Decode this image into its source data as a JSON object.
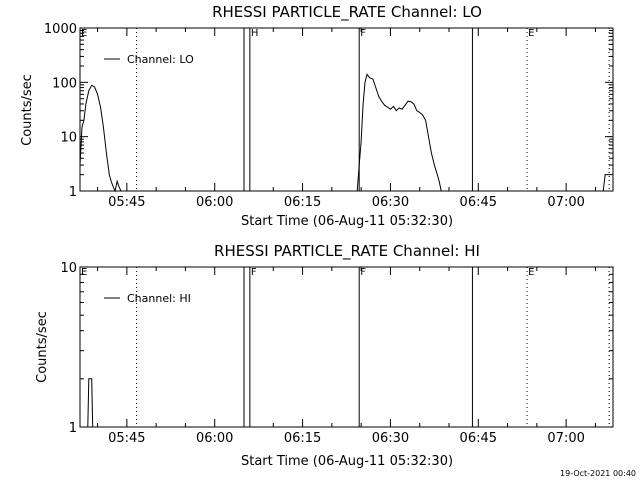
{
  "footer_timestamp": "19-Oct-2021 00:40",
  "chart_data": [
    {
      "type": "line",
      "title": "RHESSI PARTICLE_RATE Channel: LO",
      "xlabel": "Start Time (06-Aug-11 05:32:30)",
      "ylabel": "Counts/sec",
      "y_scale": "log",
      "ylim": [
        1,
        1000
      ],
      "xlim": [
        "05:37:00",
        "07:08:00"
      ],
      "x_ticks": [
        "05:45",
        "06:00",
        "06:15",
        "06:30",
        "06:45",
        "07:00"
      ],
      "y_ticks": [
        "1",
        "10",
        "100",
        "1000"
      ],
      "legend": {
        "label": "Channel: LO",
        "position": "top-left"
      },
      "markers": [
        {
          "label": "E",
          "time": "05:37:00",
          "style": "solid"
        },
        {
          "label": "",
          "time": "05:46:40",
          "style": "dotted"
        },
        {
          "label": "",
          "time": "06:05:00",
          "style": "solid"
        },
        {
          "label": "H",
          "time": "06:06:00",
          "style": "solid"
        },
        {
          "label": "F",
          "time": "06:24:40",
          "style": "solid"
        },
        {
          "label": "",
          "time": "06:44:00",
          "style": "solid"
        },
        {
          "label": "E",
          "time": "06:53:20",
          "style": "dotted"
        },
        {
          "label": "",
          "time": "07:07:20",
          "style": "dotted"
        }
      ],
      "series": [
        {
          "name": "Channel: LO",
          "x": [
            "05:37:00",
            "05:37:20",
            "05:37:40",
            "05:38:00",
            "05:38:30",
            "05:39:00",
            "05:39:30",
            "05:40:00",
            "05:40:30",
            "05:41:00",
            "05:41:30",
            "05:42:00",
            "05:42:20",
            "05:42:40",
            "05:43:00",
            "05:43:20",
            "05:43:40",
            "05:44:00",
            "05:44:20"
          ],
          "y": [
            3,
            15,
            20,
            40,
            70,
            88,
            82,
            60,
            35,
            15,
            5,
            2,
            1.5,
            1.2,
            1,
            1.5,
            1.2,
            1,
            1
          ]
        },
        {
          "name": "",
          "x": [
            "06:24:20",
            "06:24:40",
            "06:25:00",
            "06:25:20",
            "06:25:40",
            "06:26:00",
            "06:26:30",
            "06:27:00",
            "06:27:30",
            "06:28:00",
            "06:28:30",
            "06:29:00",
            "06:29:30",
            "06:30:00",
            "06:30:30",
            "06:31:00",
            "06:31:30",
            "06:32:00",
            "06:32:30",
            "06:33:00",
            "06:33:30",
            "06:34:00",
            "06:34:30",
            "06:35:00",
            "06:35:30",
            "06:36:00",
            "06:36:30",
            "06:37:00",
            "06:37:30",
            "06:38:00",
            "06:38:20",
            "06:38:40"
          ],
          "y": [
            1,
            3,
            8,
            40,
            100,
            140,
            120,
            115,
            80,
            55,
            45,
            38,
            35,
            32,
            36,
            30,
            34,
            32,
            38,
            45,
            44,
            40,
            30,
            28,
            25,
            20,
            10,
            5,
            3,
            2,
            1.5,
            1
          ]
        },
        {
          "name": "",
          "x": [
            "07:06:20",
            "07:06:40",
            "07:07:00",
            "07:07:20"
          ],
          "y": [
            1,
            2,
            2,
            2
          ]
        }
      ]
    },
    {
      "type": "line",
      "title": "RHESSI PARTICLE_RATE Channel: HI",
      "xlabel": "Start Time (06-Aug-11 05:32:30)",
      "ylabel": "Counts/sec",
      "y_scale": "log",
      "ylim": [
        1,
        10
      ],
      "xlim": [
        "05:37:00",
        "07:08:00"
      ],
      "x_ticks": [
        "05:45",
        "06:00",
        "06:15",
        "06:30",
        "06:45",
        "07:00"
      ],
      "y_ticks": [
        "1",
        "10"
      ],
      "legend": {
        "label": "Channel: HI",
        "position": "top-left"
      },
      "markers": [
        {
          "label": "E",
          "time": "05:37:00",
          "style": "solid"
        },
        {
          "label": "",
          "time": "05:46:40",
          "style": "dotted"
        },
        {
          "label": "",
          "time": "06:05:00",
          "style": "solid"
        },
        {
          "label": "F",
          "time": "06:06:00",
          "style": "solid"
        },
        {
          "label": "F",
          "time": "06:24:40",
          "style": "solid"
        },
        {
          "label": "",
          "time": "06:44:00",
          "style": "solid"
        },
        {
          "label": "E",
          "time": "06:53:20",
          "style": "dotted"
        },
        {
          "label": "",
          "time": "07:07:20",
          "style": "dotted"
        }
      ],
      "series": [
        {
          "name": "Channel: HI",
          "x": [
            "05:38:20",
            "05:38:30",
            "05:38:40",
            "05:39:00",
            "05:39:10",
            "05:39:20"
          ],
          "y": [
            1,
            2,
            2,
            2,
            1,
            1
          ]
        }
      ]
    }
  ]
}
